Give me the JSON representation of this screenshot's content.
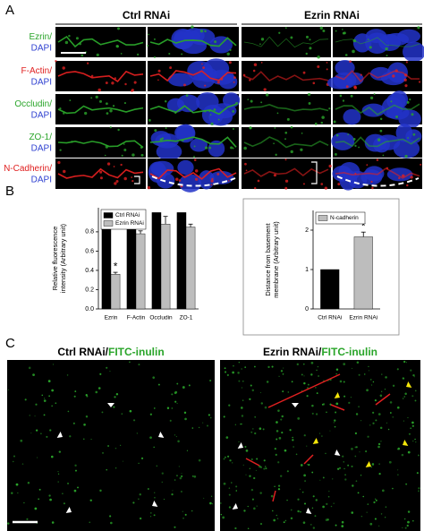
{
  "panel_labels": [
    "A",
    "B",
    "C"
  ],
  "panel_a": {
    "columns": [
      "Ctrl RNAi",
      "Ezrin RNAi"
    ],
    "rows": [
      {
        "stain": "Ezrin/",
        "counterstain": "DAPI",
        "stain_color": "#2aa52a"
      },
      {
        "stain": "F-Actin/",
        "counterstain": "DAPI",
        "stain_color": "#e02020"
      },
      {
        "stain": "Occludin/",
        "counterstain": "DAPI",
        "stain_color": "#2aa52a"
      },
      {
        "stain": "ZO-1/",
        "counterstain": "DAPI",
        "stain_color": "#2aa52a"
      },
      {
        "stain": "N-Cadherin/",
        "counterstain": "DAPI",
        "stain_color": "#e02020"
      }
    ],
    "counterstain_color": "#2d3fd0"
  },
  "chart_data": [
    {
      "type": "bar",
      "ylabel": [
        "Relative fluorescence",
        "intensity (Arbitrary unit)"
      ],
      "categories": [
        "Ezrin",
        "F-Actin",
        "Occludin",
        "ZO-1"
      ],
      "series": [
        {
          "name": "Ctrl RNAi",
          "color": "#000000",
          "values": [
            1,
            1,
            1,
            1
          ]
        },
        {
          "name": "Ezrin RNAi",
          "color": "#bdbdbd",
          "values": [
            0.36,
            0.78,
            0.88,
            0.85
          ],
          "errors": [
            0.02,
            0.03,
            0.08,
            0.03
          ],
          "significance": [
            "*",
            null,
            null,
            null
          ]
        }
      ],
      "ylim": [
        0,
        1.05
      ],
      "yticks": [
        {
          "value": 0,
          "label": "0.0"
        },
        0.2,
        0.4,
        0.6,
        0.8
      ],
      "legend": "upper left"
    },
    {
      "type": "bar",
      "ylabel": [
        "Distance from basement",
        "membrane (Arbitrary unit)"
      ],
      "categories": [
        "Ctrl RNAi",
        "Ezrin RNAi"
      ],
      "series": [
        {
          "name": "N-cadherin",
          "color": "#bdbdbd",
          "colors": [
            "#000000",
            "#bdbdbd"
          ],
          "values": [
            1,
            1.83
          ],
          "errors": [
            0,
            0.12
          ],
          "significance": [
            null,
            "*"
          ]
        }
      ],
      "ylim": [
        0,
        2.5
      ],
      "yticks": [
        0,
        1,
        2
      ],
      "legend": "upper left"
    }
  ],
  "panel_c": {
    "images": [
      {
        "condition": "Ctrl RNAi/",
        "tracer": "FITC-inulin"
      },
      {
        "condition": "Ezrin RNAi/",
        "tracer": "FITC-inulin"
      }
    ],
    "tracer_color": "#2aa52a"
  }
}
